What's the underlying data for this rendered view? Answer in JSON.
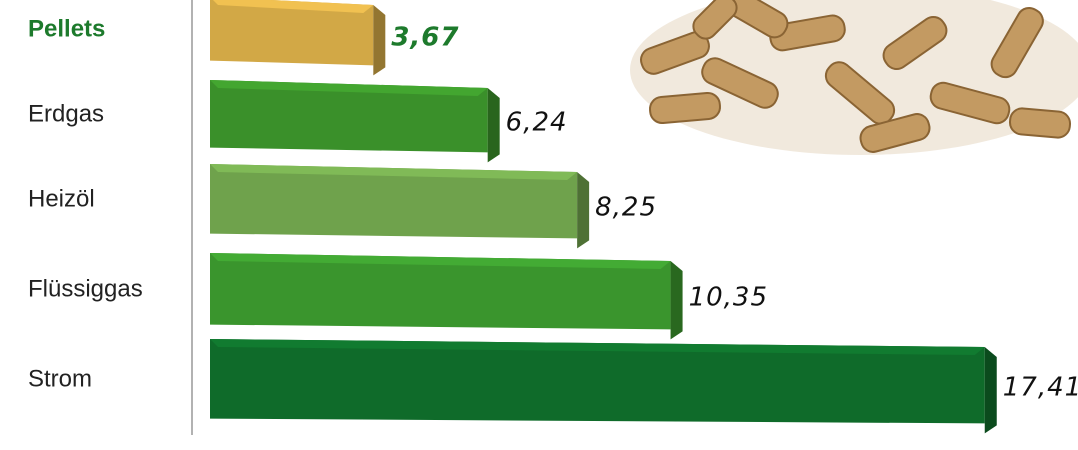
{
  "chart_data": {
    "type": "bar",
    "orientation": "horizontal",
    "categories": [
      "Pellets",
      "Erdgas",
      "Heizöl",
      "Flüssiggas",
      "Strom"
    ],
    "values": [
      3.67,
      6.24,
      8.25,
      10.35,
      17.41
    ],
    "value_labels": [
      "3,67",
      "6,24",
      "8,25",
      "10,35",
      "17,41"
    ],
    "colors": [
      "#d2a846",
      "#3a902a",
      "#6fa24c",
      "#3a952d",
      "#0f6b2a"
    ]
  }
}
